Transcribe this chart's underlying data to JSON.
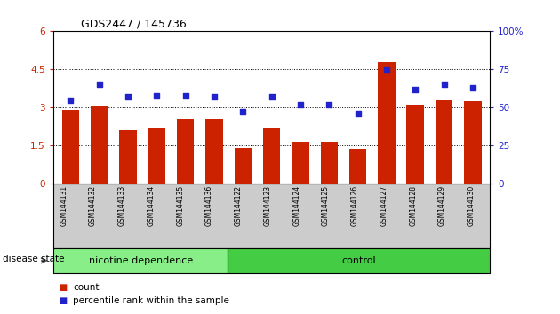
{
  "title": "GDS2447 / 145736",
  "categories": [
    "GSM144131",
    "GSM144132",
    "GSM144133",
    "GSM144134",
    "GSM144135",
    "GSM144136",
    "GSM144122",
    "GSM144123",
    "GSM144124",
    "GSM144125",
    "GSM144126",
    "GSM144127",
    "GSM144128",
    "GSM144129",
    "GSM144130"
  ],
  "bar_values": [
    2.9,
    3.05,
    2.1,
    2.2,
    2.55,
    2.55,
    1.4,
    2.2,
    1.65,
    1.65,
    1.35,
    4.8,
    3.1,
    3.3,
    3.25
  ],
  "dot_values": [
    55,
    65,
    57,
    58,
    58,
    57,
    47,
    57,
    52,
    52,
    46,
    75,
    62,
    65,
    63
  ],
  "bar_color": "#cc2200",
  "dot_color": "#2222cc",
  "n_nicotine": 6,
  "n_control": 9,
  "nicotine_color": "#88ee88",
  "control_color": "#44cc44",
  "group_label_nicotine": "nicotine dependence",
  "group_label_control": "control",
  "disease_state_label": "disease state",
  "legend_bar": "count",
  "legend_dot": "percentile rank within the sample",
  "left_ylim": [
    0,
    6
  ],
  "left_yticks": [
    0,
    1.5,
    3.0,
    4.5,
    6
  ],
  "right_ylim": [
    0,
    100
  ],
  "right_yticks": [
    0,
    25,
    50,
    75,
    100
  ],
  "bar_width": 0.6,
  "gray_color": "#cccccc"
}
